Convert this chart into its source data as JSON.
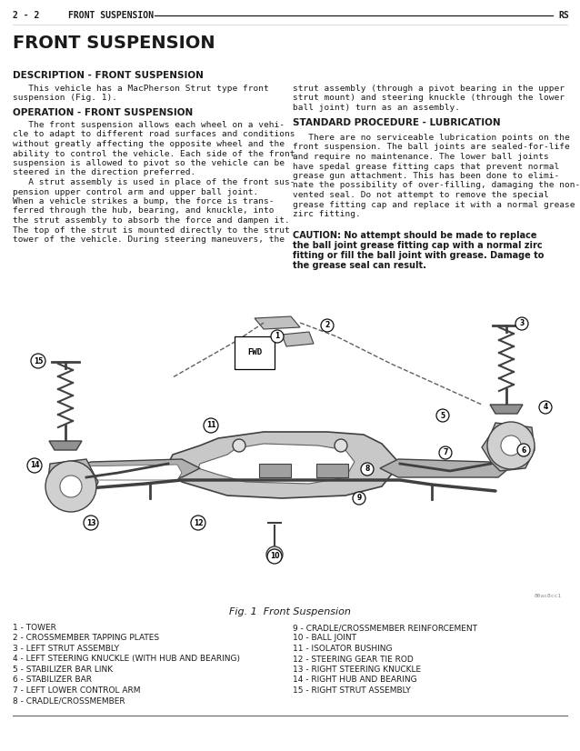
{
  "bg_color": "#ffffff",
  "text_color": "#1a1a1a",
  "header_left": "2 - 2",
  "header_center": "FRONT SUSPENSION",
  "header_right": "RS",
  "title_main": "FRONT SUSPENSION",
  "section1_head": "DESCRIPTION - FRONT SUSPENSION",
  "section1_body1": "   This vehicle has a MacPherson Strut type front",
  "section1_body2": "suspension (Fig. 1).",
  "section2_head": "OPERATION - FRONT SUSPENSION",
  "section2_body": "   The front suspension allows each wheel on a vehi-\ncle to adapt to different road surfaces and conditions\nwithout greatly affecting the opposite wheel and the\nability to control the vehicle. Each side of the front\nsuspension is allowed to pivot so the vehicle can be\nsteered in the direction preferred.\n   A strut assembly is used in place of the front sus-\npension upper control arm and upper ball joint.\nWhen a vehicle strikes a bump, the force is trans-\nferred through the hub, bearing, and knuckle, into\nthe strut assembly to absorb the force and dampen it.\nThe top of the strut is mounted directly to the strut\ntower of the vehicle. During steering maneuvers, the",
  "right_col_top": "strut assembly (through a pivot bearing in the upper\nstrut mount) and steering knuckle (through the lower\nball joint) turn as an assembly.",
  "section3_head": "STANDARD PROCEDURE - LUBRICATION",
  "section3_body": "   There are no serviceable lubrication points on the\nfront suspension. The ball joints are sealed-for-life\nand require no maintenance. The lower ball joints\nhave spedal grease fitting caps that prevent normal\ngrease gun attachment. This has been done to elimi-\nnate the possibility of over-filling, damaging the non-\nvented seal. Do not attempt to remove the special\ngrease fitting cap and replace it with a normal grease\nzirc fitting.",
  "caution_text": "CAUTION: No attempt should be made to replace\nthe ball joint grease fitting cap with a normal zirc\nfitting or fill the ball joint with grease. Damage to\nthe grease seal can result.",
  "fig_caption": "Fig. 1  Front Suspension",
  "img_code": "80ac8cc1",
  "legend_left": [
    "1 - TOWER",
    "2 - CROSSMEMBER TAPPING PLATES",
    "3 - LEFT STRUT ASSEMBLY",
    "4 - LEFT STEERING KNUCKLE (WITH HUB AND BEARING)",
    "5 - STABILIZER BAR LINK",
    "6 - STABILIZER BAR",
    "7 - LEFT LOWER CONTROL ARM",
    "8 - CRADLE/CROSSMEMBER"
  ],
  "legend_right": [
    "9 - CRADLE/CROSSMEMBER REINFORCEMENT",
    "10 - BALL JOINT",
    "11 - ISOLATOR BUSHING",
    "12 - STEERING GEAR TIE ROD",
    "13 - RIGHT STEERING KNUCKLE",
    "14 - RIGHT HUB AND BEARING",
    "15 - RIGHT STRUT ASSEMBLY"
  ]
}
